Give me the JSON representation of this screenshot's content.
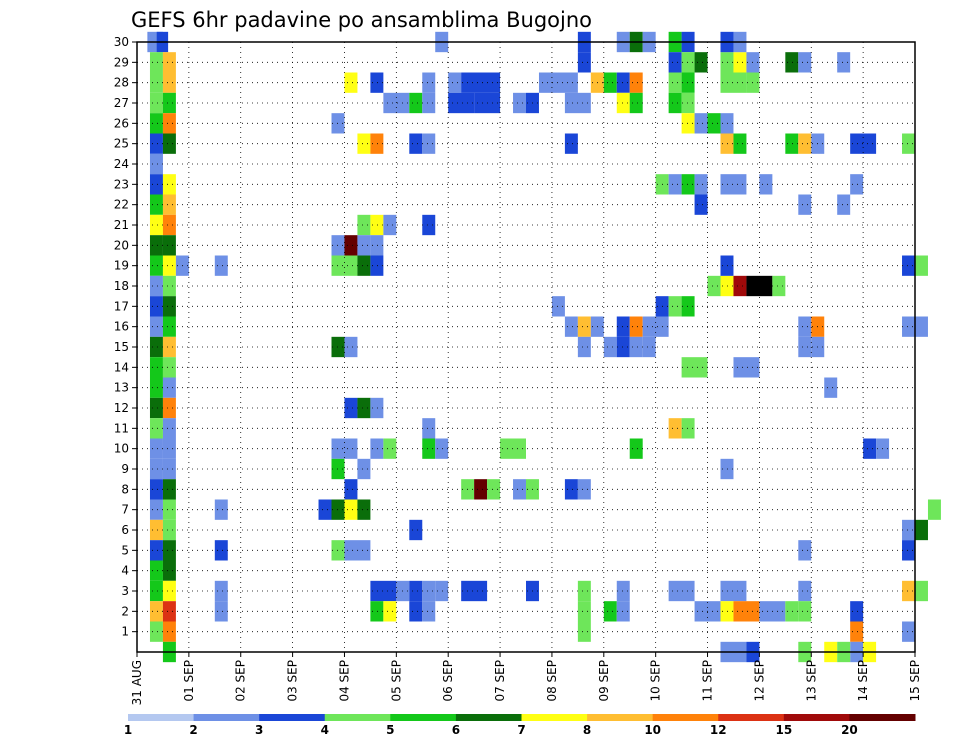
{
  "chart_data": {
    "type": "heatmap",
    "title": "GEFS 6hr padavine po ansamblima Bugojno",
    "ylabel": "",
    "xlabel": "",
    "y_ticks": [
      "1",
      "2",
      "3",
      "4",
      "5",
      "6",
      "7",
      "8",
      "9",
      "10",
      "11",
      "12",
      "13",
      "14",
      "15",
      "16",
      "17",
      "18",
      "19",
      "20",
      "21",
      "22",
      "23",
      "24",
      "25",
      "26",
      "27",
      "28",
      "29",
      "30"
    ],
    "x_ticks": [
      "31 AUG",
      "01 SEP",
      "02 SEP",
      "03 SEP",
      "04 SEP",
      "05 SEP",
      "06 SEP",
      "07 SEP",
      "08 SEP",
      "09 SEP",
      "10 SEP",
      "11 SEP",
      "12 SEP",
      "13 SEP",
      "14 SEP",
      "15 SEP"
    ],
    "x_range_days": [
      0,
      15
    ],
    "y_range": [
      0,
      30
    ],
    "grid": true,
    "colorbar": {
      "placement": "bottom",
      "labels": [
        "1",
        "2",
        "3",
        "4",
        "5",
        "6",
        "7",
        "8",
        "10",
        "12",
        "15",
        "20"
      ],
      "colors": [
        "#b4c8f0",
        "#6e90e6",
        "#1a46d7",
        "#6ee65a",
        "#14c81a",
        "#0a6e0a",
        "#ffff14",
        "#ffbe32",
        "#ff820a",
        "#dc3214",
        "#a00a0a",
        "#640000"
      ]
    },
    "cells": [
      [
        30,
        0.2,
        0.25,
        1
      ],
      [
        30,
        0.25,
        0.5,
        1
      ],
      [
        30,
        0.38,
        0.6,
        2
      ],
      [
        29,
        0.25,
        0.5,
        3
      ],
      [
        28,
        0.25,
        0.5,
        3
      ],
      [
        27,
        0.25,
        0.5,
        3
      ],
      [
        26,
        0.25,
        0.5,
        4
      ],
      [
        25,
        0.25,
        0.5,
        2
      ],
      [
        24,
        0.25,
        0.5,
        1
      ],
      [
        23,
        0.25,
        0.5,
        2
      ],
      [
        22,
        0.25,
        0.5,
        4
      ],
      [
        21,
        0.25,
        0.5,
        6
      ],
      [
        20,
        0.25,
        0.5,
        5
      ],
      [
        19,
        0.25,
        0.5,
        4
      ],
      [
        18,
        0.25,
        0.5,
        1
      ],
      [
        17,
        0.25,
        0.5,
        2
      ],
      [
        16,
        0.25,
        0.5,
        1
      ],
      [
        15,
        0.25,
        0.5,
        5
      ],
      [
        14,
        0.25,
        0.5,
        4
      ],
      [
        13,
        0.25,
        0.5,
        4
      ],
      [
        12,
        0.25,
        0.5,
        5
      ],
      [
        11,
        0.25,
        0.5,
        3
      ],
      [
        10,
        0.25,
        0.5,
        1
      ],
      [
        9,
        0.25,
        0.5,
        1
      ],
      [
        8,
        0.25,
        0.5,
        2
      ],
      [
        7,
        0.25,
        0.5,
        1
      ],
      [
        6,
        0.25,
        0.5,
        7
      ],
      [
        5,
        0.25,
        0.5,
        2
      ],
      [
        4,
        0.25,
        0.5,
        4
      ],
      [
        3,
        0.25,
        0.5,
        4
      ],
      [
        2,
        0.25,
        0.5,
        7
      ],
      [
        1,
        0.25,
        0.5,
        3
      ],
      [
        29,
        0.5,
        0.75,
        7
      ],
      [
        28,
        0.5,
        0.75,
        7
      ],
      [
        27,
        0.5,
        0.75,
        4
      ],
      [
        26,
        0.5,
        0.75,
        8
      ],
      [
        25,
        0.5,
        0.75,
        5
      ],
      [
        23,
        0.5,
        0.75,
        6
      ],
      [
        22,
        0.5,
        0.75,
        7
      ],
      [
        21,
        0.5,
        0.75,
        8
      ],
      [
        20,
        0.5,
        0.75,
        5
      ],
      [
        19,
        0.5,
        0.75,
        6
      ],
      [
        18,
        0.5,
        0.75,
        3
      ],
      [
        17,
        0.5,
        0.75,
        5
      ],
      [
        16,
        0.5,
        0.75,
        4
      ],
      [
        15,
        0.5,
        0.75,
        7
      ],
      [
        14,
        0.5,
        0.75,
        3
      ],
      [
        13,
        0.5,
        0.75,
        1
      ],
      [
        12,
        0.5,
        0.75,
        8
      ],
      [
        11,
        0.5,
        0.75,
        1
      ],
      [
        10,
        0.5,
        0.75,
        1
      ],
      [
        9,
        0.5,
        0.75,
        1
      ],
      [
        8,
        0.5,
        0.75,
        5
      ],
      [
        7,
        0.5,
        0.75,
        3
      ],
      [
        6,
        0.5,
        0.75,
        3
      ],
      [
        5,
        0.5,
        0.75,
        5
      ],
      [
        4,
        0.5,
        0.75,
        5
      ],
      [
        3,
        0.5,
        0.75,
        6
      ],
      [
        2,
        0.5,
        0.75,
        9
      ],
      [
        1,
        0.5,
        0.75,
        8
      ],
      [
        0,
        0.5,
        0.75,
        4
      ],
      [
        19,
        0.75,
        1.0,
        1
      ],
      [
        19,
        1.5,
        1.75,
        1
      ],
      [
        7,
        1.5,
        1.75,
        1
      ],
      [
        5,
        1.5,
        1.75,
        2
      ],
      [
        3,
        1.5,
        1.75,
        1
      ],
      [
        2,
        1.5,
        1.75,
        1
      ],
      [
        26,
        3.75,
        4.0,
        1
      ],
      [
        28,
        4.0,
        4.25,
        6
      ],
      [
        25,
        4.25,
        4.5,
        6
      ],
      [
        25,
        4.5,
        4.75,
        8
      ],
      [
        28,
        4.5,
        4.75,
        2
      ],
      [
        21,
        4.25,
        4.5,
        3
      ],
      [
        21,
        4.5,
        4.75,
        6
      ],
      [
        21,
        4.75,
        5.0,
        1
      ],
      [
        21,
        5.5,
        5.75,
        2
      ],
      [
        20,
        3.75,
        4.0,
        1
      ],
      [
        20,
        4.0,
        4.25,
        11
      ],
      [
        20,
        4.25,
        4.5,
        1
      ],
      [
        20,
        4.5,
        4.75,
        1
      ],
      [
        19,
        3.75,
        4.25,
        3
      ],
      [
        19,
        4.25,
        4.5,
        5
      ],
      [
        19,
        4.5,
        4.75,
        2
      ],
      [
        15,
        3.75,
        4.0,
        5
      ],
      [
        15,
        4.0,
        4.25,
        1
      ],
      [
        12,
        4.0,
        4.25,
        2
      ],
      [
        12,
        4.25,
        4.5,
        5
      ],
      [
        12,
        4.5,
        4.75,
        1
      ],
      [
        10,
        3.75,
        4.25,
        1
      ],
      [
        10,
        4.5,
        4.75,
        1
      ],
      [
        10,
        4.75,
        5.0,
        3
      ],
      [
        10,
        5.5,
        5.75,
        4
      ],
      [
        10,
        5.75,
        6.0,
        1
      ],
      [
        9,
        3.75,
        4.0,
        4
      ],
      [
        9,
        4.25,
        4.5,
        1
      ],
      [
        8,
        4.0,
        4.25,
        2
      ],
      [
        7,
        3.5,
        3.75,
        2
      ],
      [
        7,
        3.75,
        4.0,
        5
      ],
      [
        7,
        4.0,
        4.25,
        6
      ],
      [
        7,
        4.25,
        4.5,
        5
      ],
      [
        5,
        3.75,
        4.0,
        3
      ],
      [
        5,
        4.0,
        4.5,
        1
      ],
      [
        27,
        4.75,
        5.25,
        1
      ],
      [
        27,
        5.25,
        5.5,
        4
      ],
      [
        27,
        5.5,
        5.75,
        1
      ],
      [
        25,
        5.25,
        5.5,
        2
      ],
      [
        25,
        5.5,
        5.75,
        1
      ],
      [
        11,
        5.5,
        5.75,
        1
      ],
      [
        6,
        5.25,
        5.5,
        2
      ],
      [
        3,
        4.5,
        5.0,
        2
      ],
      [
        3,
        5.0,
        5.25,
        1
      ],
      [
        3,
        5.25,
        5.5,
        2
      ],
      [
        3,
        5.5,
        5.75,
        1
      ],
      [
        3,
        5.75,
        6.0,
        1
      ],
      [
        2,
        4.5,
        4.75,
        4
      ],
      [
        2,
        4.75,
        5.0,
        6
      ],
      [
        2,
        5.25,
        5.5,
        2
      ],
      [
        2,
        5.5,
        5.75,
        1
      ],
      [
        28,
        5.5,
        5.75,
        1
      ],
      [
        28,
        6.0,
        6.25,
        1
      ],
      [
        28,
        6.25,
        7.0,
        2
      ],
      [
        27,
        6.0,
        6.5,
        2
      ],
      [
        27,
        6.5,
        7.0,
        2
      ],
      [
        30,
        5.75,
        6.0,
        1
      ],
      [
        8,
        6.25,
        6.5,
        3
      ],
      [
        8,
        6.5,
        6.75,
        11
      ],
      [
        8,
        6.75,
        7.0,
        3
      ],
      [
        8,
        7.25,
        7.5,
        1
      ],
      [
        8,
        7.5,
        7.75,
        3
      ],
      [
        8,
        8.25,
        8.5,
        2
      ],
      [
        8,
        8.5,
        8.75,
        1
      ],
      [
        10,
        7.0,
        7.5,
        3
      ],
      [
        3,
        6.25,
        6.75,
        2
      ],
      [
        3,
        7.5,
        7.75,
        2
      ],
      [
        28,
        7.75,
        8.5,
        1
      ],
      [
        27,
        7.25,
        7.5,
        1
      ],
      [
        27,
        7.5,
        7.75,
        2
      ],
      [
        27,
        8.25,
        8.75,
        1
      ],
      [
        25,
        8.25,
        8.5,
        2
      ],
      [
        17,
        8.0,
        8.25,
        1
      ],
      [
        16,
        8.25,
        8.5,
        1
      ],
      [
        16,
        8.5,
        8.75,
        7
      ],
      [
        16,
        8.75,
        9.0,
        1
      ],
      [
        16,
        9.25,
        9.5,
        2
      ],
      [
        16,
        9.5,
        9.75,
        8
      ],
      [
        16,
        9.75,
        10.25,
        1
      ],
      [
        17,
        10.0,
        10.25,
        2
      ],
      [
        17,
        10.25,
        10.5,
        3
      ],
      [
        17,
        10.5,
        10.75,
        4
      ],
      [
        15,
        8.5,
        8.75,
        1
      ],
      [
        15,
        9.0,
        9.25,
        1
      ],
      [
        15,
        9.25,
        9.5,
        2
      ],
      [
        15,
        9.5,
        9.75,
        1
      ],
      [
        15,
        9.75,
        10.0,
        1
      ],
      [
        30,
        8.5,
        8.75,
        2
      ],
      [
        30,
        9.25,
        9.5,
        1
      ],
      [
        30,
        9.5,
        9.75,
        5
      ],
      [
        30,
        9.75,
        10.0,
        1
      ],
      [
        30,
        10.25,
        10.5,
        4
      ],
      [
        30,
        10.5,
        10.75,
        2
      ],
      [
        29,
        8.5,
        8.75,
        2
      ],
      [
        29,
        10.25,
        10.5,
        2
      ],
      [
        29,
        10.5,
        10.75,
        3
      ],
      [
        29,
        10.75,
        11.0,
        5
      ],
      [
        28,
        8.75,
        9.0,
        7
      ],
      [
        28,
        9.0,
        9.25,
        4
      ],
      [
        28,
        9.25,
        9.5,
        2
      ],
      [
        28,
        9.5,
        9.75,
        8
      ],
      [
        28,
        10.25,
        10.5,
        3
      ],
      [
        28,
        10.5,
        10.75,
        4
      ],
      [
        27,
        9.25,
        9.5,
        6
      ],
      [
        27,
        9.5,
        9.75,
        4
      ],
      [
        27,
        10.25,
        10.5,
        4
      ],
      [
        27,
        10.5,
        10.75,
        3
      ],
      [
        26,
        10.5,
        10.75,
        6
      ],
      [
        26,
        10.75,
        11.0,
        1
      ],
      [
        26,
        11.0,
        11.25,
        4
      ],
      [
        26,
        11.25,
        11.5,
        1
      ],
      [
        3,
        8.5,
        8.75,
        3
      ],
      [
        2,
        8.5,
        8.75,
        3
      ],
      [
        1,
        8.5,
        8.75,
        3
      ],
      [
        3,
        9.25,
        9.5,
        1
      ],
      [
        2,
        9.0,
        9.25,
        4
      ],
      [
        2,
        9.25,
        9.5,
        1
      ],
      [
        10,
        9.5,
        9.75,
        4
      ],
      [
        23,
        10.0,
        10.25,
        3
      ],
      [
        23,
        10.25,
        10.5,
        1
      ],
      [
        23,
        10.5,
        10.75,
        4
      ],
      [
        23,
        10.75,
        11.0,
        1
      ],
      [
        23,
        11.25,
        11.75,
        1
      ],
      [
        23,
        12.0,
        12.25,
        1
      ],
      [
        23,
        13.75,
        14.0,
        1
      ],
      [
        22,
        10.75,
        11.0,
        2
      ],
      [
        22,
        12.75,
        13.0,
        1
      ],
      [
        22,
        13.5,
        13.75,
        1
      ],
      [
        14,
        10.5,
        11.0,
        3
      ],
      [
        14,
        11.5,
        12.0,
        1
      ],
      [
        13,
        13.25,
        13.5,
        1
      ],
      [
        11,
        10.25,
        10.5,
        7
      ],
      [
        11,
        10.5,
        10.75,
        3
      ],
      [
        9,
        11.25,
        11.5,
        1
      ],
      [
        3,
        10.25,
        10.75,
        1
      ],
      [
        3,
        11.25,
        11.75,
        1
      ],
      [
        2,
        10.75,
        11.25,
        1
      ],
      [
        2,
        11.25,
        11.5,
        6
      ],
      [
        2,
        11.5,
        12.0,
        8
      ],
      [
        2,
        12.0,
        12.5,
        1
      ],
      [
        2,
        12.5,
        12.75,
        3
      ],
      [
        18,
        11.0,
        11.25,
        3
      ],
      [
        18,
        11.25,
        11.5,
        6
      ],
      [
        18,
        11.5,
        11.75,
        10
      ],
      [
        18,
        11.75,
        12.25,
        12
      ],
      [
        18,
        12.25,
        12.5,
        3
      ],
      [
        19,
        11.25,
        11.5,
        2
      ],
      [
        29,
        11.25,
        11.5,
        3
      ],
      [
        29,
        11.5,
        11.75,
        6
      ],
      [
        29,
        11.75,
        12.0,
        1
      ],
      [
        29,
        12.5,
        12.75,
        5
      ],
      [
        29,
        12.75,
        13.0,
        1
      ],
      [
        29,
        13.5,
        13.75,
        1
      ],
      [
        28,
        11.25,
        11.75,
        3
      ],
      [
        28,
        11.75,
        12.0,
        3
      ],
      [
        30,
        11.25,
        11.5,
        2
      ],
      [
        30,
        11.5,
        11.75,
        1
      ],
      [
        25,
        11.25,
        11.5,
        7
      ],
      [
        25,
        11.5,
        11.75,
        4
      ],
      [
        25,
        12.5,
        12.75,
        4
      ],
      [
        25,
        12.75,
        13.0,
        7
      ],
      [
        25,
        13.0,
        13.25,
        1
      ],
      [
        25,
        13.75,
        14.25,
        2
      ],
      [
        25,
        14.75,
        15.0,
        3
      ],
      [
        16,
        12.75,
        13.0,
        1
      ],
      [
        16,
        13.0,
        13.25,
        8
      ],
      [
        16,
        14.75,
        15.25,
        1
      ],
      [
        15,
        12.75,
        13.0,
        1
      ],
      [
        15,
        13.0,
        13.25,
        1
      ],
      [
        10,
        14.0,
        14.25,
        2
      ],
      [
        10,
        14.25,
        14.5,
        1
      ],
      [
        5,
        12.75,
        13.0,
        1
      ],
      [
        3,
        12.75,
        13.0,
        1
      ],
      [
        2,
        12.75,
        13.0,
        3
      ],
      [
        2,
        13.75,
        14.0,
        2
      ],
      [
        1,
        13.75,
        14.0,
        8
      ],
      [
        0,
        13.75,
        14.0,
        1
      ],
      [
        0,
        11.25,
        11.75,
        1
      ],
      [
        0,
        11.75,
        12.0,
        2
      ],
      [
        0,
        12.75,
        13.0,
        3
      ],
      [
        0,
        13.25,
        13.5,
        6
      ],
      [
        0,
        13.5,
        13.75,
        3
      ],
      [
        0,
        14.0,
        14.25,
        6
      ],
      [
        19,
        14.75,
        15.0,
        2
      ],
      [
        19,
        15.0,
        15.25,
        3
      ],
      [
        7,
        15.25,
        15.5,
        3
      ],
      [
        6,
        14.75,
        15.0,
        1
      ],
      [
        6,
        15.0,
        15.25,
        5
      ],
      [
        5,
        14.75,
        15.0,
        2
      ],
      [
        3,
        14.75,
        15.0,
        7
      ],
      [
        3,
        15.0,
        15.25,
        3
      ],
      [
        1,
        14.75,
        15.0,
        1
      ]
    ]
  }
}
